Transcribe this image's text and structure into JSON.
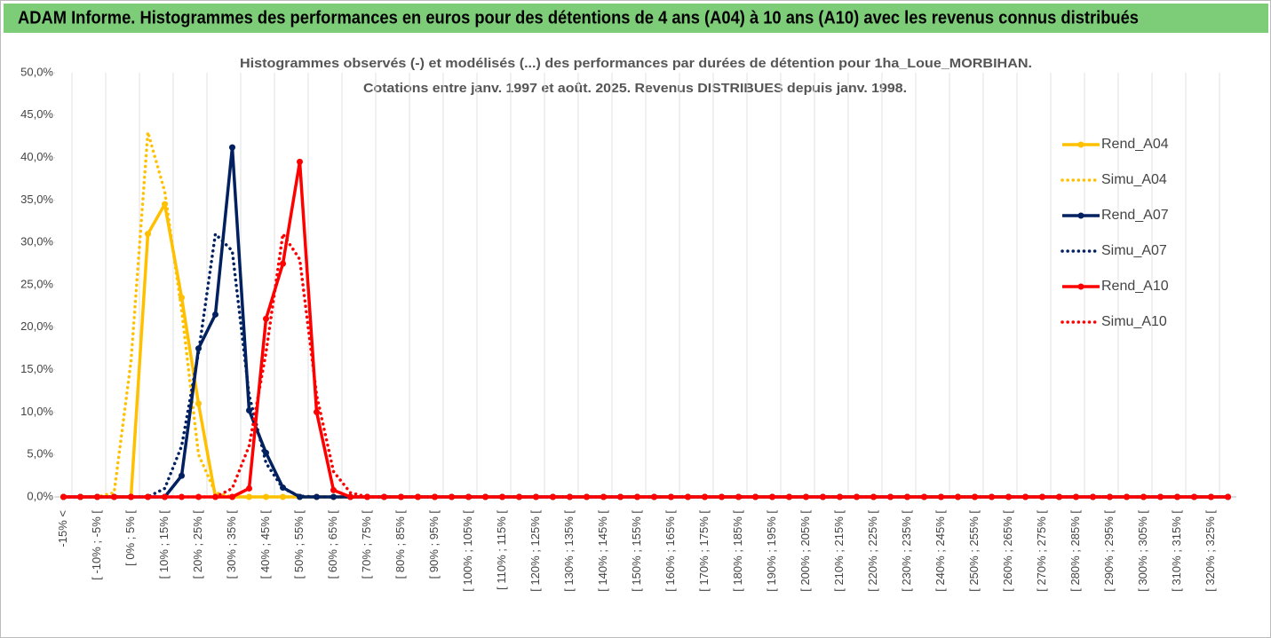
{
  "header": {
    "title": "ADAM Informe. Histogrammes des performances en euros pour des détentions de 4 ans (A04) à 10 ans (A10) avec les revenus connus distribués"
  },
  "chart_data": {
    "type": "line",
    "title": "Histogrammes observés (-) et modélisés (...) des performances par durées de détention pour 1ha_Loue_MORBIHAN.",
    "subtitle": "Cotations entre janv. 1997 et août. 2025. Revenus DISTRIBUES depuis janv. 1998.",
    "categories": [
      "-15% <",
      null,
      "[ -10% ; -5% [",
      null,
      "[ 0% ; 5% [",
      null,
      "[ 10% ; 15% [",
      null,
      "[ 20% ; 25% [",
      null,
      "[ 30% ; 35% [",
      null,
      "[ 40% ; 45% [",
      null,
      "[ 50% ; 55% [",
      null,
      "[ 60% ; 65% [",
      null,
      "[ 70% ; 75% [",
      null,
      "[ 80% ; 85% [",
      null,
      "[ 90% ; 95% [",
      null,
      "[ 100% ; 105% [",
      null,
      "[ 110% ; 115% [",
      null,
      "[ 120% ; 125% [",
      null,
      "[ 130% ; 135% [",
      null,
      "[ 140% ; 145% [",
      null,
      "[ 150% ; 155% [",
      null,
      "[ 160% ; 165% [",
      null,
      "[ 170% ; 175% [",
      null,
      "[ 180% ; 185% [",
      null,
      "[ 190% ; 195% [",
      null,
      "[ 200% ; 205% [",
      null,
      "[ 210% ; 215% [",
      null,
      "[ 220% ; 225% [",
      null,
      "[ 230% ; 235% [",
      null,
      "[ 240% ; 245% [",
      null,
      "[ 250% ; 255% [",
      null,
      "[ 260% ; 265% [",
      null,
      "[ 270% ; 275% [",
      null,
      "[ 280% ; 285% [",
      null,
      "[ 290% ; 295% [",
      null,
      "[ 300% ; 305% [",
      null,
      "[ 310% ; 315% [",
      null,
      "[ 320% ; 325% [",
      null
    ],
    "series": [
      {
        "name": "Rend_A04",
        "color": "#ffc000",
        "style": "solid",
        "marker": true,
        "values": [
          0,
          0,
          0,
          0,
          0,
          31,
          34.5,
          23.5,
          11,
          0,
          0,
          0,
          0,
          0,
          0,
          0,
          0,
          0,
          0,
          0,
          0,
          0,
          0,
          0,
          0,
          0,
          0,
          0,
          0,
          0,
          0,
          0,
          0,
          0,
          0,
          0,
          0,
          0,
          0,
          0,
          0,
          0,
          0,
          0,
          0,
          0,
          0,
          0,
          0,
          0,
          0,
          0,
          0,
          0,
          0,
          0,
          0,
          0,
          0,
          0,
          0,
          0,
          0,
          0,
          0,
          0,
          0,
          0,
          0,
          0
        ]
      },
      {
        "name": "Simu_A04",
        "color": "#ffc000",
        "style": "dotted",
        "marker": false,
        "values": [
          0,
          0,
          0,
          0.5,
          16,
          43,
          36,
          22,
          5,
          0.5,
          0,
          0,
          0,
          0,
          0,
          0,
          0,
          0,
          0,
          0,
          0,
          0,
          0,
          0,
          0,
          0,
          0,
          0,
          0,
          0,
          0,
          0,
          0,
          0,
          0,
          0,
          0,
          0,
          0,
          0,
          0,
          0,
          0,
          0,
          0,
          0,
          0,
          0,
          0,
          0,
          0,
          0,
          0,
          0,
          0,
          0,
          0,
          0,
          0,
          0,
          0,
          0,
          0,
          0,
          0,
          0,
          0,
          0,
          0,
          0
        ]
      },
      {
        "name": "Rend_A07",
        "color": "#002060",
        "style": "solid",
        "marker": true,
        "values": [
          0,
          0,
          0,
          0,
          0,
          0,
          0,
          2.5,
          17.5,
          21.5,
          41.2,
          10.2,
          5.2,
          1.1,
          0,
          0,
          0,
          0,
          0,
          0,
          0,
          0,
          0,
          0,
          0,
          0,
          0,
          0,
          0,
          0,
          0,
          0,
          0,
          0,
          0,
          0,
          0,
          0,
          0,
          0,
          0,
          0,
          0,
          0,
          0,
          0,
          0,
          0,
          0,
          0,
          0,
          0,
          0,
          0,
          0,
          0,
          0,
          0,
          0,
          0,
          0,
          0,
          0,
          0,
          0,
          0,
          0,
          0,
          0,
          0
        ]
      },
      {
        "name": "Simu_A07",
        "color": "#002060",
        "style": "dotted",
        "marker": false,
        "values": [
          0,
          0,
          0,
          0,
          0,
          0,
          1,
          6,
          17,
          31,
          29,
          12,
          4,
          1,
          0.1,
          0,
          0,
          0,
          0,
          0,
          0,
          0,
          0,
          0,
          0,
          0,
          0,
          0,
          0,
          0,
          0,
          0,
          0,
          0,
          0,
          0,
          0,
          0,
          0,
          0,
          0,
          0,
          0,
          0,
          0,
          0,
          0,
          0,
          0,
          0,
          0,
          0,
          0,
          0,
          0,
          0,
          0,
          0,
          0,
          0,
          0,
          0,
          0,
          0,
          0,
          0,
          0,
          0,
          0,
          0
        ]
      },
      {
        "name": "Rend_A10",
        "color": "#ff0000",
        "style": "solid",
        "marker": true,
        "values": [
          0,
          0,
          0,
          0,
          0,
          0,
          0,
          0,
          0,
          0,
          0,
          1,
          21,
          27.5,
          39.5,
          10,
          0.8,
          0,
          0,
          0,
          0,
          0,
          0,
          0,
          0,
          0,
          0,
          0,
          0,
          0,
          0,
          0,
          0,
          0,
          0,
          0,
          0,
          0,
          0,
          0,
          0,
          0,
          0,
          0,
          0,
          0,
          0,
          0,
          0,
          0,
          0,
          0,
          0,
          0,
          0,
          0,
          0,
          0,
          0,
          0,
          0,
          0,
          0,
          0,
          0,
          0,
          0,
          0,
          0,
          0
        ]
      },
      {
        "name": "Simu_A10",
        "color": "#ff0000",
        "style": "dotted",
        "marker": false,
        "values": [
          0,
          0,
          0,
          0,
          0,
          0,
          0,
          0,
          0,
          0,
          1,
          6,
          17,
          31,
          28,
          12,
          3,
          0.5,
          0,
          0,
          0,
          0,
          0,
          0,
          0,
          0,
          0,
          0,
          0,
          0,
          0,
          0,
          0,
          0,
          0,
          0,
          0,
          0,
          0,
          0,
          0,
          0,
          0,
          0,
          0,
          0,
          0,
          0,
          0,
          0,
          0,
          0,
          0,
          0,
          0,
          0,
          0,
          0,
          0,
          0,
          0,
          0,
          0,
          0,
          0,
          0,
          0,
          0,
          0,
          0
        ]
      }
    ],
    "ylim": [
      0,
      50
    ],
    "yticks": [
      {
        "value": 0,
        "label": "0,0%"
      },
      {
        "value": 5,
        "label": "5,0%"
      },
      {
        "value": 10,
        "label": "10,0%"
      },
      {
        "value": 15,
        "label": "15,0%"
      },
      {
        "value": 20,
        "label": "20,0%"
      },
      {
        "value": 25,
        "label": "25,0%"
      },
      {
        "value": 30,
        "label": "30,0%"
      },
      {
        "value": 35,
        "label": "35,0%"
      },
      {
        "value": 40,
        "label": "40,0%"
      },
      {
        "value": 45,
        "label": "45,0%"
      },
      {
        "value": 50,
        "label": "50,0%"
      }
    ],
    "xgrid": true,
    "legend": "right"
  }
}
